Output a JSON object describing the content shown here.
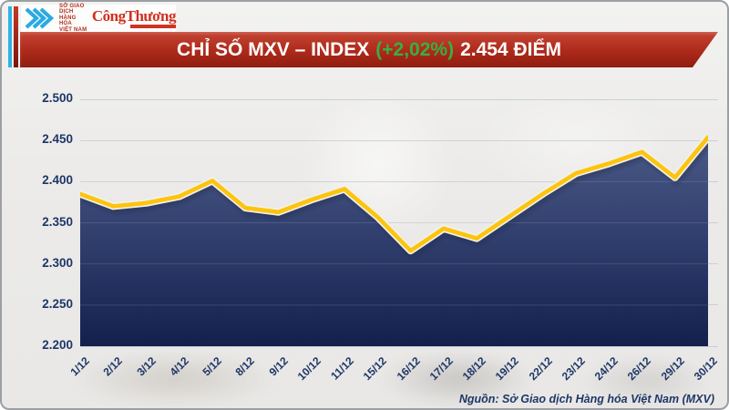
{
  "header": {
    "logo": {
      "exchange_name_lines": [
        "SỞ GIAO DỊCH",
        "HÀNG HÓA",
        "VIỆT NAM"
      ],
      "newspaper_name": "CôngThương"
    },
    "banner": {
      "title": "CHỈ SỐ MXV – INDEX",
      "change_percent": "(+2,02%)",
      "value_text": "2.454 ĐIỂM"
    }
  },
  "chart_data": {
    "type": "area",
    "title": "CHỈ SỐ MXV – INDEX (+2,02%) 2.454 ĐIỂM",
    "x": [
      "1/12",
      "2/12",
      "3/12",
      "4/12",
      "5/12",
      "8/12",
      "9/12",
      "10/12",
      "11/12",
      "15/12",
      "16/12",
      "17/12",
      "18/12",
      "19/12",
      "22/12",
      "23/12",
      "24/12",
      "26/12",
      "29/12",
      "30/12"
    ],
    "values": [
      2385,
      2370,
      2374,
      2382,
      2401,
      2368,
      2363,
      2378,
      2391,
      2357,
      2316,
      2343,
      2331,
      2358,
      2385,
      2410,
      2422,
      2436,
      2405,
      2454
    ],
    "ylim": [
      2200,
      2500
    ],
    "yticks": [
      {
        "label": "2.500",
        "value": 2500
      },
      {
        "label": "2.450",
        "value": 2450
      },
      {
        "label": "2.400",
        "value": 2400
      },
      {
        "label": "2.350",
        "value": 2350
      },
      {
        "label": "2.300",
        "value": 2300
      },
      {
        "label": "2.250",
        "value": 2250
      },
      {
        "label": "2.200",
        "value": 2200
      }
    ],
    "grid": true,
    "legend": "none",
    "colors": {
      "line": "#fcc40d",
      "line_edge": "#f2f1ec",
      "area_top": "#4d5c88",
      "area_mid": "#2e3c6c",
      "area_bottom": "#141f4c",
      "axis_text": "#1e3767",
      "gridline": "#cbced4",
      "banner_red": "#b02b1c",
      "change_green": "#35b13f"
    }
  },
  "footer": {
    "source": "Nguồn: Sở Giao dịch Hàng hóa Việt Nam (MXV)"
  }
}
